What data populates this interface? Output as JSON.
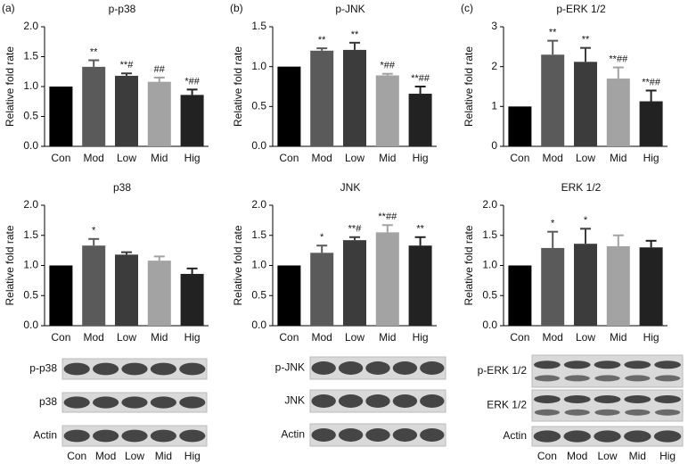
{
  "chart_data": [
    {
      "type": "bar",
      "panel": "(a)",
      "title": "p-p38",
      "y_label": "Relative fold rate",
      "categories": [
        "Con",
        "Mod",
        "Low",
        "Mid",
        "Hig"
      ],
      "values": [
        1.0,
        1.33,
        1.18,
        1.08,
        0.86
      ],
      "errors": [
        0,
        0.11,
        0.04,
        0.07,
        0.09
      ],
      "annotations": [
        null,
        "**",
        "**#",
        "##",
        "*##"
      ],
      "colors": [
        "#000000",
        "#5a5a5a",
        "#3c3c3c",
        "#a3a3a3",
        "#222222"
      ],
      "ylim": [
        0,
        2
      ],
      "yticks": [
        {
          "value": 0,
          "label": "0.0"
        },
        0.5,
        {
          "value": 1,
          "label": "1.0"
        },
        1.5,
        {
          "value": 2,
          "label": "2.0"
        }
      ]
    },
    {
      "type": "bar",
      "panel": "(b)",
      "title": "p-JNK",
      "y_label": "Relative fold rate",
      "categories": [
        "Con",
        "Mod",
        "Low",
        "Mid",
        "Hig"
      ],
      "values": [
        1.0,
        1.2,
        1.21,
        0.89,
        0.66
      ],
      "errors": [
        0,
        0.03,
        0.09,
        0.02,
        0.09
      ],
      "annotations": [
        null,
        "**",
        "**",
        "*##",
        "**##"
      ],
      "colors": [
        "#000000",
        "#5a5a5a",
        "#3c3c3c",
        "#a3a3a3",
        "#222222"
      ],
      "ylim": [
        0,
        1.5
      ],
      "yticks": [
        {
          "value": 0,
          "label": "0.0"
        },
        0.5,
        {
          "value": 1,
          "label": "1.0"
        },
        1.5
      ]
    },
    {
      "type": "bar",
      "panel": "(c)",
      "title": "p-ERK 1/2",
      "y_label": "Relative fold rate",
      "categories": [
        "Con",
        "Mod",
        "Low",
        "Mid",
        "Hig"
      ],
      "values": [
        1.0,
        2.3,
        2.12,
        1.7,
        1.13
      ],
      "errors": [
        0,
        0.35,
        0.35,
        0.28,
        0.27
      ],
      "annotations": [
        null,
        "**",
        "**",
        "**##",
        "**##"
      ],
      "colors": [
        "#000000",
        "#5a5a5a",
        "#3c3c3c",
        "#a3a3a3",
        "#222222"
      ],
      "ylim": [
        0,
        3
      ],
      "yticks": [
        0,
        1,
        2,
        3
      ]
    },
    {
      "type": "bar",
      "title": "p38",
      "y_label": "Relative fold rate",
      "categories": [
        "Con",
        "Mod",
        "Low",
        "Mid",
        "Hig"
      ],
      "values": [
        1.0,
        1.33,
        1.18,
        1.08,
        0.86
      ],
      "errors": [
        0,
        0.11,
        0.04,
        0.07,
        0.09
      ],
      "annotations": [
        null,
        "*",
        null,
        null,
        null
      ],
      "colors": [
        "#000000",
        "#5a5a5a",
        "#3c3c3c",
        "#a3a3a3",
        "#222222"
      ],
      "ylim": [
        0,
        2
      ],
      "yticks": [
        {
          "value": 0,
          "label": "0.0"
        },
        0.5,
        {
          "value": 1,
          "label": "1.0"
        },
        1.5,
        {
          "value": 2,
          "label": "2.0"
        }
      ]
    },
    {
      "type": "bar",
      "title": "JNK",
      "y_label": "Relative fold rate",
      "categories": [
        "Con",
        "Mod",
        "Low",
        "Mid",
        "Hig"
      ],
      "values": [
        1.0,
        1.21,
        1.42,
        1.55,
        1.33
      ],
      "errors": [
        0,
        0.12,
        0.05,
        0.12,
        0.14
      ],
      "annotations": [
        null,
        "*",
        "**#",
        "**##",
        "**"
      ],
      "colors": [
        "#000000",
        "#5a5a5a",
        "#3c3c3c",
        "#a3a3a3",
        "#222222"
      ],
      "ylim": [
        0,
        2
      ],
      "yticks": [
        {
          "value": 0,
          "label": "0.0"
        },
        0.5,
        {
          "value": 1,
          "label": "1.0"
        },
        1.5,
        {
          "value": 2,
          "label": "2.0"
        }
      ]
    },
    {
      "type": "bar",
      "title": "ERK 1/2",
      "y_label": "Relative fold rate",
      "categories": [
        "Con",
        "Mod",
        "Low",
        "Mid",
        "Hig"
      ],
      "values": [
        1.0,
        1.29,
        1.36,
        1.32,
        1.3
      ],
      "errors": [
        0,
        0.27,
        0.25,
        0.18,
        0.11
      ],
      "annotations": [
        null,
        "*",
        "*",
        null,
        null
      ],
      "colors": [
        "#000000",
        "#5a5a5a",
        "#3c3c3c",
        "#a3a3a3",
        "#222222"
      ],
      "ylim": [
        0,
        2
      ],
      "yticks": [
        {
          "value": 0,
          "label": "0.0"
        },
        0.5,
        {
          "value": 1,
          "label": "1.0"
        },
        1.5,
        {
          "value": 2,
          "label": "2.0"
        }
      ]
    }
  ],
  "blots": [
    {
      "rows": [
        "p-p38",
        "p38",
        "Actin"
      ],
      "lanes": [
        "Con",
        "Mod",
        "Low",
        "Mid",
        "Hig"
      ]
    },
    {
      "rows": [
        "p-JNK",
        "JNK",
        "Actin"
      ]
    },
    {
      "rows": [
        "p-ERK 1/2",
        "ERK 1/2",
        "Actin"
      ],
      "lanes": [
        "Con",
        "Mod",
        "Low",
        "Mid",
        "Hig"
      ]
    }
  ]
}
